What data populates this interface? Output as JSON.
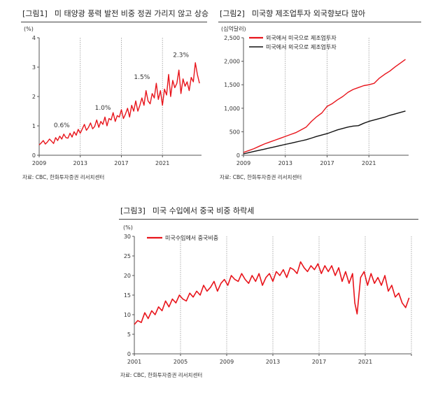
{
  "panels": [
    {
      "number": "[그림1]",
      "title": "미 태양광 풍력 발전 비중 정권 가리지 않고 상승",
      "source": "자료: CBC, 한화투자증권 리서치센터"
    },
    {
      "number": "[그림2]",
      "title": "미국향 제조업투자 외국향보다 많아",
      "source": "자료: CBC, 한화투자증권 리서치센터"
    },
    {
      "number": "[그림3]",
      "title": "미국 수입에서 중국 비중 하락세",
      "source": "자료: CBC, 한화투자증권 리서치센터"
    }
  ],
  "chart_data": [
    {
      "type": "line",
      "unit": "(%)",
      "ylim": [
        0,
        4
      ],
      "yticks": [
        "0",
        "1",
        "2",
        "3",
        "4"
      ],
      "xlim": [
        2009,
        2024.8
      ],
      "xticks": [
        {
          "x": 2009,
          "label": "2009"
        },
        {
          "x": 2013,
          "label": "2013"
        },
        {
          "x": 2017,
          "label": "2017"
        },
        {
          "x": 2021,
          "label": "2021"
        }
      ],
      "vlines": [
        2013,
        2017,
        2021
      ],
      "color": "#e8141b",
      "annotations": [
        {
          "x": 2011.2,
          "y": 0.95,
          "text": "0.6%"
        },
        {
          "x": 2015.2,
          "y": 1.55,
          "text": "1.0%"
        },
        {
          "x": 2019.0,
          "y": 2.6,
          "text": "1.5%"
        },
        {
          "x": 2022.8,
          "y": 3.35,
          "text": "2.3%"
        }
      ],
      "series": [
        {
          "x": [
            2009.0,
            2009.2,
            2009.4,
            2009.6,
            2009.8,
            2010.0,
            2010.2,
            2010.4,
            2010.6,
            2010.8,
            2011.0,
            2011.2,
            2011.4,
            2011.6,
            2011.8,
            2012.0,
            2012.2,
            2012.4,
            2012.6,
            2012.8,
            2013.0,
            2013.2,
            2013.4,
            2013.6,
            2013.8,
            2014.0,
            2014.2,
            2014.4,
            2014.6,
            2014.8,
            2015.0,
            2015.2,
            2015.4,
            2015.6,
            2015.8,
            2016.0,
            2016.2,
            2016.4,
            2016.6,
            2016.8,
            2017.0,
            2017.2,
            2017.4,
            2017.6,
            2017.8,
            2018.0,
            2018.2,
            2018.4,
            2018.6,
            2018.8,
            2019.0,
            2019.2,
            2019.4,
            2019.6,
            2019.8,
            2020.0,
            2020.2,
            2020.4,
            2020.6,
            2020.8,
            2021.0,
            2021.2,
            2021.4,
            2021.6,
            2021.8,
            2022.0,
            2022.2,
            2022.4,
            2022.6,
            2022.8,
            2023.0,
            2023.2,
            2023.4,
            2023.6,
            2023.8,
            2024.0,
            2024.2,
            2024.4,
            2024.6
          ],
          "y": [
            0.35,
            0.42,
            0.5,
            0.38,
            0.45,
            0.55,
            0.48,
            0.4,
            0.6,
            0.5,
            0.65,
            0.55,
            0.72,
            0.6,
            0.58,
            0.75,
            0.62,
            0.8,
            0.68,
            0.88,
            0.75,
            0.9,
            1.05,
            0.85,
            0.95,
            1.1,
            0.9,
            0.98,
            1.2,
            0.95,
            1.15,
            1.05,
            1.3,
            1.0,
            1.25,
            1.2,
            1.45,
            1.15,
            1.35,
            1.3,
            1.55,
            1.25,
            1.4,
            1.6,
            1.3,
            1.7,
            1.5,
            1.85,
            1.5,
            1.7,
            1.95,
            1.7,
            2.2,
            1.85,
            1.75,
            2.1,
            1.95,
            2.45,
            1.9,
            2.2,
            1.7,
            2.25,
            2.05,
            2.75,
            2.0,
            2.55,
            2.3,
            2.45,
            2.9,
            2.1,
            2.6,
            2.35,
            2.5,
            2.2,
            2.65,
            2.5,
            3.15,
            2.75,
            2.45
          ]
        }
      ]
    },
    {
      "type": "line",
      "unit": "(십억달러)",
      "ylim": [
        0,
        2500
      ],
      "yticks": [
        "0",
        "500",
        "1,000",
        "1,500",
        "2,000",
        "2,500"
      ],
      "xlim": [
        2009,
        2024.8
      ],
      "xticks": [
        {
          "x": 2009,
          "label": "2009"
        },
        {
          "x": 2013,
          "label": "2013"
        },
        {
          "x": 2017,
          "label": "2017"
        },
        {
          "x": 2021,
          "label": "2021"
        }
      ],
      "vlines": [
        2013,
        2017,
        2021
      ],
      "legend_position": "top-left",
      "series": [
        {
          "name": "외국에서 미국으로 제조업투자",
          "color": "#e8141b",
          "x": [
            2009.0,
            2009.5,
            2010.0,
            2010.5,
            2011.0,
            2011.5,
            2012.0,
            2012.5,
            2013.0,
            2013.5,
            2014.0,
            2014.5,
            2015.0,
            2015.5,
            2016.0,
            2016.5,
            2017.0,
            2017.5,
            2018.0,
            2018.5,
            2019.0,
            2019.5,
            2020.0,
            2020.5,
            2021.0,
            2021.5,
            2022.0,
            2022.5,
            2023.0,
            2023.5,
            2024.0,
            2024.5
          ],
          "y": [
            60,
            100,
            140,
            190,
            240,
            280,
            320,
            360,
            400,
            440,
            480,
            540,
            600,
            720,
            820,
            900,
            1040,
            1100,
            1180,
            1250,
            1340,
            1400,
            1440,
            1480,
            1500,
            1530,
            1640,
            1720,
            1790,
            1880,
            1960,
            2040
          ]
        },
        {
          "name": "미국에서 외국으로 제조업투자",
          "color": "#111111",
          "x": [
            2009.0,
            2009.5,
            2010.0,
            2010.5,
            2011.0,
            2011.5,
            2012.0,
            2012.5,
            2013.0,
            2013.5,
            2014.0,
            2014.5,
            2015.0,
            2015.5,
            2016.0,
            2016.5,
            2017.0,
            2017.5,
            2018.0,
            2018.5,
            2019.0,
            2019.5,
            2020.0,
            2020.5,
            2021.0,
            2021.5,
            2022.0,
            2022.5,
            2023.0,
            2023.5,
            2024.0,
            2024.5
          ],
          "y": [
            30,
            55,
            80,
            105,
            130,
            155,
            180,
            205,
            230,
            255,
            280,
            305,
            330,
            365,
            400,
            430,
            460,
            500,
            540,
            570,
            600,
            620,
            630,
            680,
            720,
            750,
            780,
            810,
            850,
            880,
            910,
            940
          ]
        }
      ]
    },
    {
      "type": "line",
      "unit": "(%)",
      "ylim": [
        0,
        30
      ],
      "yticks": [
        "0",
        "5",
        "10",
        "15",
        "20",
        "25",
        "30"
      ],
      "xlim": [
        2001,
        2025
      ],
      "xticks": [
        {
          "x": 2001,
          "label": "2001"
        },
        {
          "x": 2005,
          "label": "2005"
        },
        {
          "x": 2009,
          "label": "2009"
        },
        {
          "x": 2013,
          "label": "2013"
        },
        {
          "x": 2017,
          "label": "2017"
        },
        {
          "x": 2021,
          "label": "2021"
        },
        {
          "x": 2025,
          "label": ""
        }
      ],
      "vlines": [
        2005,
        2009,
        2013,
        2017,
        2021,
        2025
      ],
      "legend_position": "top-left",
      "series": [
        {
          "name": "미국수입에서 중국비중",
          "color": "#e8141b",
          "x": [
            2001.0,
            2001.3,
            2001.6,
            2001.9,
            2002.2,
            2002.5,
            2002.8,
            2003.1,
            2003.4,
            2003.7,
            2004.0,
            2004.3,
            2004.6,
            2004.9,
            2005.2,
            2005.5,
            2005.8,
            2006.1,
            2006.4,
            2006.7,
            2007.0,
            2007.3,
            2007.6,
            2007.9,
            2008.2,
            2008.5,
            2008.8,
            2009.1,
            2009.4,
            2009.7,
            2010.0,
            2010.3,
            2010.6,
            2010.9,
            2011.2,
            2011.5,
            2011.8,
            2012.1,
            2012.4,
            2012.7,
            2013.0,
            2013.3,
            2013.6,
            2013.9,
            2014.2,
            2014.5,
            2014.8,
            2015.1,
            2015.4,
            2015.7,
            2016.0,
            2016.3,
            2016.6,
            2016.9,
            2017.2,
            2017.5,
            2017.8,
            2018.1,
            2018.4,
            2018.7,
            2019.0,
            2019.3,
            2019.6,
            2019.9,
            2020.1,
            2020.3,
            2020.6,
            2020.9,
            2021.2,
            2021.5,
            2021.8,
            2022.1,
            2022.4,
            2022.7,
            2023.0,
            2023.3,
            2023.6,
            2023.9,
            2024.2,
            2024.5,
            2024.8
          ],
          "y": [
            7.5,
            8.5,
            8.0,
            10.5,
            9.0,
            11.0,
            10.0,
            12.0,
            11.0,
            13.5,
            12.0,
            14.0,
            13.0,
            15.0,
            14.0,
            13.5,
            15.5,
            14.5,
            16.0,
            15.0,
            17.5,
            16.0,
            17.0,
            18.5,
            16.0,
            18.0,
            19.0,
            17.5,
            20.0,
            19.0,
            18.5,
            20.5,
            19.0,
            18.0,
            20.0,
            18.5,
            20.5,
            17.5,
            19.5,
            20.5,
            18.5,
            21.0,
            20.0,
            21.5,
            19.5,
            22.0,
            21.5,
            20.5,
            23.5,
            22.0,
            21.0,
            22.5,
            21.5,
            23.0,
            20.5,
            22.5,
            21.0,
            22.5,
            20.0,
            22.0,
            18.5,
            21.0,
            18.0,
            20.5,
            13.0,
            10.2,
            19.5,
            21.0,
            17.5,
            20.5,
            18.0,
            19.5,
            17.5,
            20.0,
            16.0,
            17.5,
            14.5,
            15.5,
            13.0,
            11.8,
            14.3
          ]
        }
      ]
    }
  ]
}
